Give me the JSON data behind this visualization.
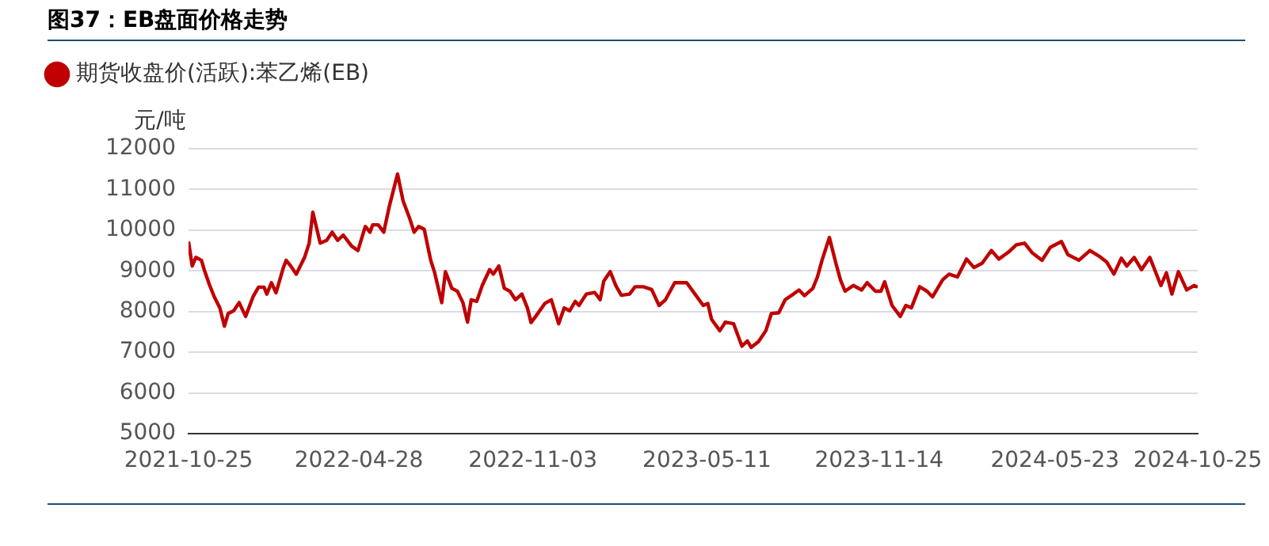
{
  "chart_data": {
    "type": "line",
    "title": "图37：EB盘面价格走势",
    "ylabel": "元/吨",
    "x": [
      "2021-10-25",
      "2021-10-29",
      "2021-11-02",
      "2021-11-08",
      "2021-11-11",
      "2021-11-17",
      "2021-11-22",
      "2021-11-28",
      "2021-12-03",
      "2021-12-07",
      "2021-12-13",
      "2021-12-19",
      "2021-12-26",
      "2022-01-03",
      "2022-01-09",
      "2022-01-15",
      "2022-01-18",
      "2022-01-23",
      "2022-01-28",
      "2022-02-05",
      "2022-02-08",
      "2022-02-13",
      "2022-02-19",
      "2022-02-28",
      "2022-03-05",
      "2022-03-09",
      "2022-03-17",
      "2022-03-24",
      "2022-03-30",
      "2022-04-05",
      "2022-04-11",
      "2022-04-20",
      "2022-04-27",
      "2022-05-05",
      "2022-05-10",
      "2022-05-13",
      "2022-05-19",
      "2022-05-25",
      "2022-05-31",
      "2022-06-09",
      "2022-06-15",
      "2022-06-22",
      "2022-06-27",
      "2022-07-02",
      "2022-07-08",
      "2022-07-15",
      "2022-07-19",
      "2022-07-27",
      "2022-07-31",
      "2022-08-07",
      "2022-08-13",
      "2022-08-19",
      "2022-08-24",
      "2022-08-28",
      "2022-09-03",
      "2022-09-09",
      "2022-09-17",
      "2022-09-21",
      "2022-09-27",
      "2022-10-03",
      "2022-10-09",
      "2022-10-15",
      "2022-10-22",
      "2022-10-28",
      "2022-11-01",
      "2022-11-06",
      "2022-11-16",
      "2022-11-23",
      "2022-12-01",
      "2022-12-07",
      "2022-12-13",
      "2022-12-19",
      "2022-12-23",
      "2022-12-31",
      "2023-01-09",
      "2023-01-15",
      "2023-01-19",
      "2023-01-26",
      "2023-02-01",
      "2023-02-07",
      "2023-02-16",
      "2023-02-22",
      "2023-03-03",
      "2023-03-12",
      "2023-03-20",
      "2023-03-27",
      "2023-04-06",
      "2023-04-19",
      "2023-04-28",
      "2023-05-07",
      "2023-05-12",
      "2023-05-16",
      "2023-05-25",
      "2023-05-31",
      "2023-06-09",
      "2023-06-18",
      "2023-06-24",
      "2023-06-28",
      "2023-07-06",
      "2023-07-14",
      "2023-07-20",
      "2023-07-28",
      "2023-08-04",
      "2023-08-13",
      "2023-08-19",
      "2023-08-25",
      "2023-09-03",
      "2023-09-08",
      "2023-09-13",
      "2023-09-21",
      "2023-09-28",
      "2023-10-03",
      "2023-10-08",
      "2023-10-17",
      "2023-10-26",
      "2023-11-01",
      "2023-11-10",
      "2023-11-16",
      "2023-11-20",
      "2023-11-28",
      "2023-12-07",
      "2023-12-13",
      "2023-12-19",
      "2023-12-28",
      "2024-01-05",
      "2024-01-11",
      "2024-01-22",
      "2024-01-29",
      "2024-02-07",
      "2024-02-17",
      "2024-02-25",
      "2024-03-05",
      "2024-03-15",
      "2024-03-23",
      "2024-04-03",
      "2024-04-11",
      "2024-04-20",
      "2024-04-28",
      "2024-05-09",
      "2024-05-18",
      "2024-05-30",
      "2024-06-06",
      "2024-06-18",
      "2024-06-30",
      "2024-07-10",
      "2024-07-18",
      "2024-07-26",
      "2024-08-03",
      "2024-08-09",
      "2024-08-17",
      "2024-08-25",
      "2024-09-03",
      "2024-09-15",
      "2024-09-21",
      "2024-09-27",
      "2024-10-04",
      "2024-10-13",
      "2024-10-21",
      "2024-10-25"
    ],
    "series": [
      {
        "name": "期货收盘价(活跃):苯乙烯(EB)",
        "color": "#c00000",
        "values": [
          9720,
          9120,
          9330,
          9260,
          9030,
          8640,
          8360,
          8090,
          7640,
          7950,
          8020,
          8220,
          7880,
          8360,
          8600,
          8600,
          8430,
          8710,
          8460,
          9080,
          9260,
          9120,
          8920,
          9330,
          9680,
          10440,
          9680,
          9750,
          9950,
          9750,
          9880,
          9610,
          9500,
          10090,
          9950,
          10130,
          10130,
          9950,
          10580,
          11380,
          10720,
          10300,
          9950,
          10090,
          10020,
          9260,
          8980,
          8220,
          8980,
          8570,
          8500,
          8220,
          7740,
          8290,
          8250,
          8640,
          9030,
          8920,
          9120,
          8570,
          8500,
          8290,
          8430,
          8090,
          7730,
          7880,
          8200,
          8290,
          7700,
          8090,
          8020,
          8250,
          8150,
          8430,
          8470,
          8290,
          8750,
          8980,
          8640,
          8400,
          8430,
          8610,
          8610,
          8540,
          8150,
          8290,
          8710,
          8710,
          8430,
          8150,
          8200,
          7810,
          7530,
          7740,
          7700,
          7150,
          7280,
          7120,
          7260,
          7530,
          7950,
          7970,
          8290,
          8430,
          8530,
          8390,
          8570,
          8850,
          9260,
          9820,
          9190,
          8780,
          8500,
          8640,
          8530,
          8710,
          8500,
          8500,
          8730,
          8150,
          7880,
          8150,
          8090,
          8610,
          8500,
          8360,
          8780,
          8920,
          8850,
          9290,
          9080,
          9190,
          9500,
          9290,
          9470,
          9640,
          9680,
          9450,
          9260,
          9580,
          9720,
          9400,
          9260,
          9500,
          9360,
          9220,
          8920,
          9310,
          9120,
          9330,
          9030,
          9330,
          8640,
          8950,
          8430,
          8980,
          8530,
          8640,
          8600
        ]
      }
    ],
    "xlim": [
      "2021-10-25",
      "2024-10-25"
    ],
    "xticks": [
      "2021-10-25",
      "2022-04-28",
      "2022-11-03",
      "2023-05-11",
      "2023-11-14",
      "2024-05-23",
      "2024-10-25"
    ],
    "ylim": [
      5000,
      12000
    ],
    "yticks": [
      5000,
      6000,
      7000,
      8000,
      9000,
      10000,
      11000,
      12000
    ],
    "grid": "y",
    "legend": "top left"
  }
}
